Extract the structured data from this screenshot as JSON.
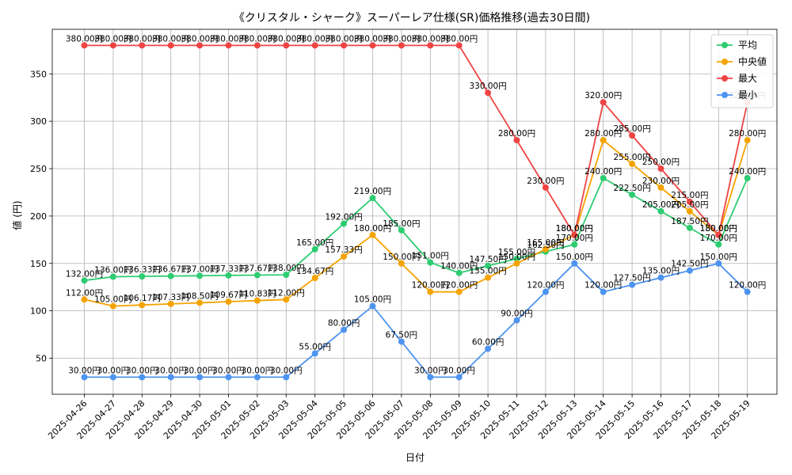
{
  "chart_data": {
    "type": "line",
    "title": "《クリスタル・シャーク》スーパーレア仕様(SR)価格推移(過去30日間)",
    "xlabel": "日付",
    "ylabel": "値 (円)",
    "ylim": [
      12,
      397
    ],
    "yticks": [
      50,
      100,
      150,
      200,
      250,
      300,
      350
    ],
    "grid": true,
    "legend_position": "top-right",
    "value_suffix": "円",
    "categories": [
      "2025-04-26",
      "2025-04-27",
      "2025-04-28",
      "2025-04-29",
      "2025-04-30",
      "2025-05-01",
      "2025-05-02",
      "2025-05-03",
      "2025-05-04",
      "2025-05-05",
      "2025-05-06",
      "2025-05-07",
      "2025-05-08",
      "2025-05-09",
      "2025-05-10",
      "2025-05-11",
      "2025-05-12",
      "2025-05-13",
      "2025-05-14",
      "2025-05-15",
      "2025-05-16",
      "2025-05-17",
      "2025-05-18",
      "2025-05-19"
    ],
    "series": [
      {
        "name": "平均",
        "color": "#2ecc71",
        "values": [
          132.0,
          136.0,
          136.33,
          136.67,
          137.0,
          137.33,
          137.67,
          138.0,
          165.0,
          192.0,
          219.0,
          185.0,
          151.0,
          140.0,
          147.5,
          155.0,
          162.5,
          170.0,
          240.0,
          222.5,
          205.0,
          187.5,
          170.0,
          240.0
        ]
      },
      {
        "name": "中央値",
        "color": "#f5a300",
        "values": [
          112.0,
          105.0,
          106.17,
          107.33,
          108.5,
          109.67,
          110.83,
          112.0,
          134.67,
          157.33,
          180.0,
          150.0,
          120.0,
          120.0,
          135.0,
          150.0,
          165.0,
          180.0,
          280.0,
          255.0,
          230.0,
          205.0,
          180.0,
          280.0
        ]
      },
      {
        "name": "最大",
        "color": "#ef4444",
        "values": [
          380.0,
          380.0,
          380.0,
          380.0,
          380.0,
          380.0,
          380.0,
          380.0,
          380.0,
          380.0,
          380.0,
          380.0,
          380.0,
          380.0,
          330.0,
          280.0,
          230.0,
          180.0,
          320.0,
          285.0,
          250.0,
          215.0,
          180.0,
          320.0
        ]
      },
      {
        "name": "最小",
        "color": "#4d94f0",
        "values": [
          30.0,
          30.0,
          30.0,
          30.0,
          30.0,
          30.0,
          30.0,
          30.0,
          55.0,
          80.0,
          105.0,
          67.5,
          30.0,
          30.0,
          60.0,
          90.0,
          120.0,
          150.0,
          120.0,
          127.5,
          135.0,
          142.5,
          150.0,
          120.0
        ]
      }
    ]
  }
}
